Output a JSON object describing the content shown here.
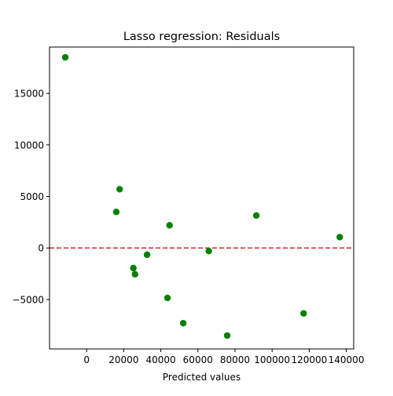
{
  "chart_data": {
    "type": "scatter",
    "title": "Lasso regression: Residuals",
    "xlabel": "Predicted values",
    "ylabel": "",
    "xlim": [
      -20000,
      144000
    ],
    "ylim": [
      -9800,
      19500
    ],
    "x_ticks": [
      0,
      20000,
      40000,
      60000,
      80000,
      100000,
      120000,
      140000
    ],
    "x_tick_labels": [
      "0",
      "20000",
      "40000",
      "60000",
      "80000",
      "100000",
      "120000",
      "140000"
    ],
    "y_ticks": [
      -5000,
      0,
      5000,
      10000,
      15000
    ],
    "y_tick_labels": [
      "−5000",
      "0",
      "5000",
      "10000",
      "15000"
    ],
    "grid": false,
    "legend": "none",
    "point_color": "#008000",
    "reference_line": {
      "y": 0,
      "style": "dashed",
      "color": "#d62728"
    },
    "points": [
      {
        "x": -11500,
        "y": 18500
      },
      {
        "x": 17800,
        "y": 5700
      },
      {
        "x": 16000,
        "y": 3500
      },
      {
        "x": 44700,
        "y": 2200
      },
      {
        "x": 91500,
        "y": 3150
      },
      {
        "x": 136500,
        "y": 1050
      },
      {
        "x": 65900,
        "y": -300
      },
      {
        "x": 32600,
        "y": -650
      },
      {
        "x": 25200,
        "y": -1950
      },
      {
        "x": 26100,
        "y": -2550
      },
      {
        "x": 43600,
        "y": -4850
      },
      {
        "x": 52100,
        "y": -7300
      },
      {
        "x": 75800,
        "y": -8500
      },
      {
        "x": 117000,
        "y": -6350
      }
    ]
  }
}
